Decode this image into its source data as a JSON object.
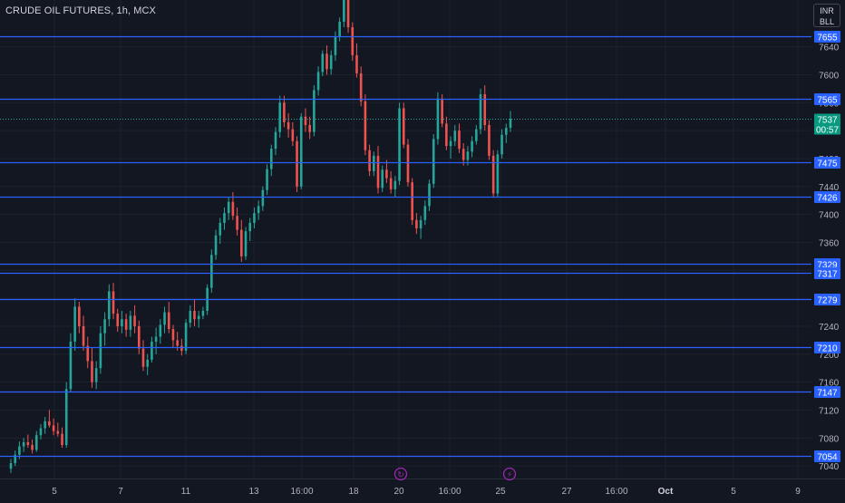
{
  "header": {
    "title": "CRUDE OIL FUTURES, 1h, MCX",
    "currency": "INR",
    "unit": "BLL"
  },
  "colors": {
    "background": "#131722",
    "grid": "#1e222d",
    "up": "#26a69a",
    "down": "#ef5350",
    "level_line": "#2962ff",
    "axis_text": "#b2b5be",
    "current_price_bg": "#089981",
    "event_icon": "#9c27b0"
  },
  "event_icons": [
    {
      "name": "dividends-icon",
      "glyph": "↻",
      "x_label": "20"
    },
    {
      "name": "lightning-icon",
      "glyph": "⚡",
      "x_label": "25"
    }
  ],
  "chart_data": {
    "type": "candlestick",
    "title": "CRUDE OIL FUTURES, 1h, MCX",
    "ylim": [
      7022,
      7707
    ],
    "y_ticks": [
      7040,
      7080,
      7120,
      7160,
      7200,
      7240,
      7280,
      7320,
      7360,
      7400,
      7440,
      7480,
      7520,
      7560,
      7600,
      7640
    ],
    "x_ticks": [
      "5",
      "7",
      "11",
      "13",
      "16:00",
      "18",
      "20",
      "16:00",
      "25",
      "27",
      "16:00",
      "Oct",
      "5",
      "9"
    ],
    "bold_x_ticks": [
      "Oct"
    ],
    "horizontal_levels": [
      7655,
      7565,
      7475,
      7426,
      7329,
      7317,
      7279,
      7210,
      7147,
      7054
    ],
    "current_price": {
      "value": "7537",
      "countdown": "00:57"
    },
    "grid": true,
    "legend": "none",
    "candles": [
      [
        7036,
        7050,
        7030,
        7044
      ],
      [
        7044,
        7062,
        7040,
        7056
      ],
      [
        7056,
        7075,
        7050,
        7068
      ],
      [
        7068,
        7080,
        7060,
        7074
      ],
      [
        7074,
        7085,
        7066,
        7070
      ],
      [
        7070,
        7078,
        7058,
        7063
      ],
      [
        7063,
        7090,
        7060,
        7084
      ],
      [
        7084,
        7100,
        7078,
        7094
      ],
      [
        7094,
        7110,
        7086,
        7104
      ],
      [
        7104,
        7120,
        7095,
        7098
      ],
      [
        7098,
        7108,
        7084,
        7090
      ],
      [
        7090,
        7102,
        7082,
        7086
      ],
      [
        7086,
        7095,
        7066,
        7070
      ],
      [
        7070,
        7160,
        7066,
        7150
      ],
      [
        7150,
        7230,
        7145,
        7218
      ],
      [
        7218,
        7280,
        7205,
        7268
      ],
      [
        7268,
        7275,
        7230,
        7240
      ],
      [
        7240,
        7255,
        7205,
        7212
      ],
      [
        7212,
        7225,
        7180,
        7190
      ],
      [
        7190,
        7210,
        7152,
        7160
      ],
      [
        7160,
        7190,
        7150,
        7180
      ],
      [
        7180,
        7240,
        7172,
        7230
      ],
      [
        7230,
        7260,
        7212,
        7250
      ],
      [
        7250,
        7300,
        7240,
        7290
      ],
      [
        7290,
        7302,
        7250,
        7258
      ],
      [
        7258,
        7265,
        7232,
        7240
      ],
      [
        7240,
        7262,
        7230,
        7250
      ],
      [
        7250,
        7258,
        7225,
        7235
      ],
      [
        7235,
        7262,
        7225,
        7255
      ],
      [
        7255,
        7270,
        7230,
        7240
      ],
      [
        7240,
        7248,
        7200,
        7208
      ],
      [
        7208,
        7220,
        7176,
        7182
      ],
      [
        7182,
        7200,
        7170,
        7192
      ],
      [
        7192,
        7225,
        7188,
        7218
      ],
      [
        7218,
        7238,
        7200,
        7225
      ],
      [
        7225,
        7250,
        7215,
        7242
      ],
      [
        7242,
        7268,
        7230,
        7260
      ],
      [
        7260,
        7275,
        7230,
        7236
      ],
      [
        7236,
        7242,
        7210,
        7220
      ],
      [
        7220,
        7232,
        7205,
        7212
      ],
      [
        7212,
        7222,
        7198,
        7205
      ],
      [
        7205,
        7250,
        7200,
        7245
      ],
      [
        7245,
        7270,
        7238,
        7262
      ],
      [
        7262,
        7278,
        7240,
        7250
      ],
      [
        7250,
        7262,
        7238,
        7255
      ],
      [
        7255,
        7268,
        7250,
        7262
      ],
      [
        7262,
        7300,
        7256,
        7295
      ],
      [
        7295,
        7350,
        7288,
        7342
      ],
      [
        7342,
        7378,
        7335,
        7370
      ],
      [
        7370,
        7395,
        7358,
        7388
      ],
      [
        7388,
        7410,
        7378,
        7402
      ],
      [
        7402,
        7425,
        7392,
        7418
      ],
      [
        7418,
        7432,
        7392,
        7398
      ],
      [
        7398,
        7410,
        7370,
        7378
      ],
      [
        7378,
        7392,
        7332,
        7340
      ],
      [
        7340,
        7382,
        7335,
        7376
      ],
      [
        7376,
        7395,
        7362,
        7388
      ],
      [
        7388,
        7410,
        7380,
        7402
      ],
      [
        7402,
        7420,
        7392,
        7412
      ],
      [
        7412,
        7440,
        7405,
        7435
      ],
      [
        7435,
        7472,
        7428,
        7465
      ],
      [
        7465,
        7500,
        7455,
        7494
      ],
      [
        7494,
        7525,
        7485,
        7518
      ],
      [
        7518,
        7570,
        7510,
        7560
      ],
      [
        7560,
        7570,
        7525,
        7532
      ],
      [
        7532,
        7545,
        7510,
        7522
      ],
      [
        7522,
        7532,
        7498,
        7505
      ],
      [
        7505,
        7512,
        7432,
        7440
      ],
      [
        7440,
        7545,
        7436,
        7540
      ],
      [
        7540,
        7552,
        7518,
        7528
      ],
      [
        7528,
        7540,
        7508,
        7518
      ],
      [
        7518,
        7585,
        7512,
        7578
      ],
      [
        7578,
        7612,
        7570,
        7604
      ],
      [
        7604,
        7635,
        7598,
        7630
      ],
      [
        7630,
        7642,
        7600,
        7608
      ],
      [
        7608,
        7635,
        7600,
        7628
      ],
      [
        7628,
        7662,
        7620,
        7655
      ],
      [
        7655,
        7682,
        7648,
        7676
      ],
      [
        7676,
        7720,
        7668,
        7712
      ],
      [
        7712,
        7718,
        7660,
        7668
      ],
      [
        7668,
        7675,
        7620,
        7628
      ],
      [
        7628,
        7645,
        7596,
        7602
      ],
      [
        7602,
        7612,
        7555,
        7562
      ],
      [
        7562,
        7572,
        7485,
        7492
      ],
      [
        7492,
        7500,
        7455,
        7462
      ],
      [
        7462,
        7490,
        7455,
        7484
      ],
      [
        7484,
        7498,
        7430,
        7438
      ],
      [
        7438,
        7470,
        7432,
        7464
      ],
      [
        7464,
        7478,
        7445,
        7452
      ],
      [
        7452,
        7462,
        7430,
        7436
      ],
      [
        7436,
        7455,
        7425,
        7448
      ],
      [
        7448,
        7560,
        7442,
        7552
      ],
      [
        7552,
        7560,
        7495,
        7500
      ],
      [
        7500,
        7508,
        7440,
        7446
      ],
      [
        7446,
        7452,
        7385,
        7392
      ],
      [
        7392,
        7402,
        7372,
        7380
      ],
      [
        7380,
        7398,
        7365,
        7392
      ],
      [
        7392,
        7420,
        7385,
        7412
      ],
      [
        7412,
        7450,
        7405,
        7444
      ],
      [
        7444,
        7515,
        7438,
        7508
      ],
      [
        7508,
        7575,
        7500,
        7566
      ],
      [
        7566,
        7572,
        7525,
        7530
      ],
      [
        7530,
        7540,
        7492,
        7498
      ],
      [
        7498,
        7512,
        7480,
        7505
      ],
      [
        7505,
        7528,
        7498,
        7520
      ],
      [
        7520,
        7530,
        7488,
        7494
      ],
      [
        7494,
        7502,
        7470,
        7478
      ],
      [
        7478,
        7498,
        7470,
        7490
      ],
      [
        7490,
        7512,
        7482,
        7505
      ],
      [
        7505,
        7528,
        7500,
        7522
      ],
      [
        7522,
        7580,
        7515,
        7572
      ],
      [
        7572,
        7585,
        7520,
        7528
      ],
      [
        7528,
        7535,
        7478,
        7484
      ],
      [
        7484,
        7492,
        7424,
        7430
      ],
      [
        7430,
        7492,
        7425,
        7486
      ],
      [
        7486,
        7522,
        7480,
        7514
      ],
      [
        7514,
        7530,
        7502,
        7524
      ],
      [
        7524,
        7548,
        7518,
        7537
      ]
    ]
  }
}
